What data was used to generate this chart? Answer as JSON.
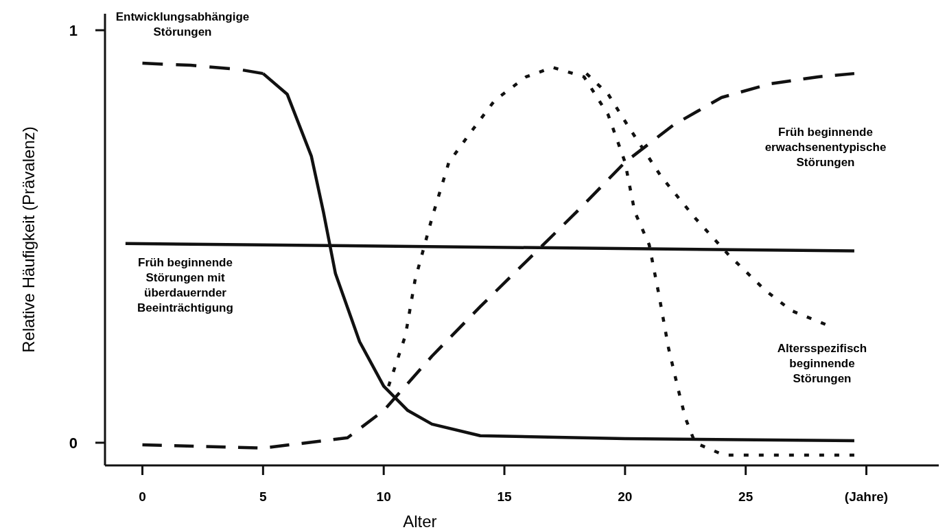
{
  "chart_data": {
    "type": "line",
    "xlabel": "Alter",
    "ylabel": "Relative Häufigkeit (Prävalenz)",
    "xlim": [
      -1.55,
      33
    ],
    "ylim": [
      -0.055,
      1.04
    ],
    "xticks": [
      0,
      5,
      10,
      15,
      20,
      25,
      {
        "value": 30,
        "label": "(Jahre)"
      }
    ],
    "yticks": [
      0,
      1
    ],
    "grid": false,
    "series": [
      {
        "color": "#111111",
        "line_style": "dashed",
        "x": [
          0,
          2,
          4,
          5
        ],
        "values": [
          0.92,
          0.915,
          0.905,
          0.895
        ]
      },
      {
        "color": "#111111",
        "line_style": "solid",
        "x": [
          5,
          6,
          7,
          7.5,
          8,
          9,
          10,
          11,
          12,
          14,
          20,
          29.5
        ],
        "values": [
          0.895,
          0.845,
          0.695,
          0.56,
          0.41,
          0.245,
          0.137,
          0.078,
          0.045,
          0.017,
          0.01,
          0.005
        ]
      },
      {
        "color": "#111111",
        "line_style": "solid",
        "x": [
          -0.7,
          29.5
        ],
        "values": [
          0.483,
          0.465
        ]
      },
      {
        "color": "#111111",
        "line_style": "dashed",
        "x": [
          0,
          5,
          8.5,
          10,
          12,
          14,
          16,
          18,
          20,
          22,
          24,
          26,
          28,
          29.5
        ],
        "values": [
          -0.005,
          -0.013,
          0.012,
          0.078,
          0.21,
          0.33,
          0.445,
          0.56,
          0.68,
          0.77,
          0.837,
          0.87,
          0.887,
          0.895
        ]
      },
      {
        "color": "#111111",
        "line_style": "dotted",
        "x": [
          10.2,
          10.9,
          11.3,
          12,
          12.7,
          13.7,
          14.6,
          15.9,
          17,
          18.3,
          19.3,
          20,
          20.4,
          21,
          21.4,
          21.8,
          22.2,
          22.5,
          22.9,
          24.1,
          29.5
        ],
        "values": [
          0.137,
          0.26,
          0.395,
          0.545,
          0.68,
          0.76,
          0.83,
          0.887,
          0.91,
          0.887,
          0.795,
          0.68,
          0.56,
          0.48,
          0.36,
          0.23,
          0.13,
          0.06,
          0,
          -0.03,
          -0.03
        ]
      },
      {
        "color": "#111111",
        "line_style": "dotted",
        "x": [
          18.4,
          19.3,
          20.1,
          21.5,
          22.9,
          24.3,
          25.8,
          26.9,
          28.3
        ],
        "values": [
          0.895,
          0.845,
          0.77,
          0.645,
          0.545,
          0.455,
          0.37,
          0.32,
          0.287
        ]
      }
    ],
    "annotations": [
      "Entwicklungsabhängige Störungen",
      "Früh beginnende Störungen mit überdauernder Beeinträchtigung",
      "Früh beginnende erwachsenentypische Störungen",
      "Altersspezifisch beginnende Störungen"
    ]
  }
}
